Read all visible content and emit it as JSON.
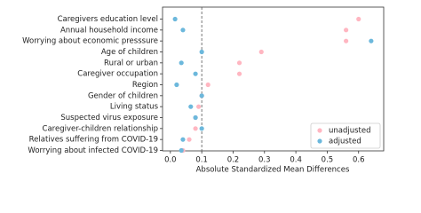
{
  "chart_data": {
    "type": "dot",
    "xlabel": "Absolute Standardized Mean Differences",
    "categories": [
      "Caregivers education level",
      "Annual household income",
      "Worrying about economic presssure",
      "Age of children",
      "Rural or urban",
      "Caregiver occupation",
      "Region",
      "Gender of children",
      "Living status",
      "Suspected virus exposure",
      "Caregiver-children relationship",
      "Relatives suffering from COVID-19",
      "Worrying about infected COVID-19"
    ],
    "series": [
      {
        "name": "unadjusted",
        "color": "#ffb6c1",
        "values": [
          0.6,
          0.56,
          0.56,
          0.29,
          0.22,
          0.22,
          0.12,
          0.1,
          0.09,
          0.08,
          0.08,
          0.06,
          0.04
        ]
      },
      {
        "name": "adjusted",
        "color": "#6cb8dc",
        "values": [
          0.015,
          0.04,
          0.64,
          0.1,
          0.035,
          0.08,
          0.02,
          0.1,
          0.065,
          0.08,
          0.1,
          0.04,
          0.035
        ]
      }
    ],
    "xlim": [
      -0.025,
      0.68
    ],
    "xticks": [
      {
        "value": 0,
        "label": "0.0"
      },
      0.1,
      0.2,
      0.3,
      0.4,
      0.5,
      0.6
    ],
    "reference_line": 0.1,
    "legend": "lower right"
  }
}
